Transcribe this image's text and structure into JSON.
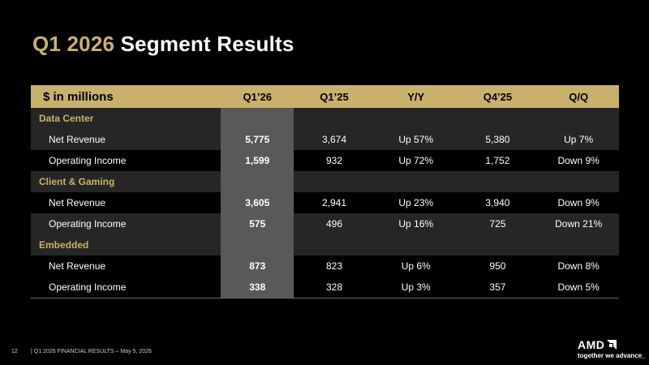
{
  "title": {
    "accent": "Q1 2026",
    "rest": "Segment Results"
  },
  "table": {
    "headers": [
      "$ in millions",
      "Q1’26",
      "Q1’25",
      "Y/Y",
      "Q4’25",
      "Q/Q"
    ],
    "sections": [
      {
        "name": "Data Center",
        "rows": [
          {
            "label": "Net Revenue",
            "values": [
              "5,775",
              "3,674",
              "Up 57%",
              "5,380",
              "Up 7%"
            ]
          },
          {
            "label": "Operating Income",
            "values": [
              "1,599",
              "932",
              "Up 72%",
              "1,752",
              "Down 9%"
            ]
          }
        ]
      },
      {
        "name": "Client & Gaming",
        "rows": [
          {
            "label": "Net Revenue",
            "values": [
              "3,605",
              "2,941",
              "Up 23%",
              "3,940",
              "Down 9%"
            ]
          },
          {
            "label": "Operating Income",
            "values": [
              "575",
              "496",
              "Up 16%",
              "725",
              "Down 21%"
            ]
          }
        ]
      },
      {
        "name": "Embedded",
        "rows": [
          {
            "label": "Net Revenue",
            "values": [
              "873",
              "823",
              "Up 6%",
              "950",
              "Down 8%"
            ]
          },
          {
            "label": "Operating Income",
            "values": [
              "338",
              "328",
              "Up 3%",
              "357",
              "Down 5%"
            ]
          }
        ]
      }
    ]
  },
  "footer": {
    "page_number": "12",
    "text": "|  Q1 2026 FINANCIAL RESULTS – May 5, 2026"
  },
  "logo": {
    "name": "AMD",
    "tagline": "together we advance_",
    "icon": "amd-arrow-icon"
  },
  "colors": {
    "accent": "#c9b16b",
    "highlight_column": "#595959",
    "row_band": "#262626",
    "background": "#000000"
  }
}
